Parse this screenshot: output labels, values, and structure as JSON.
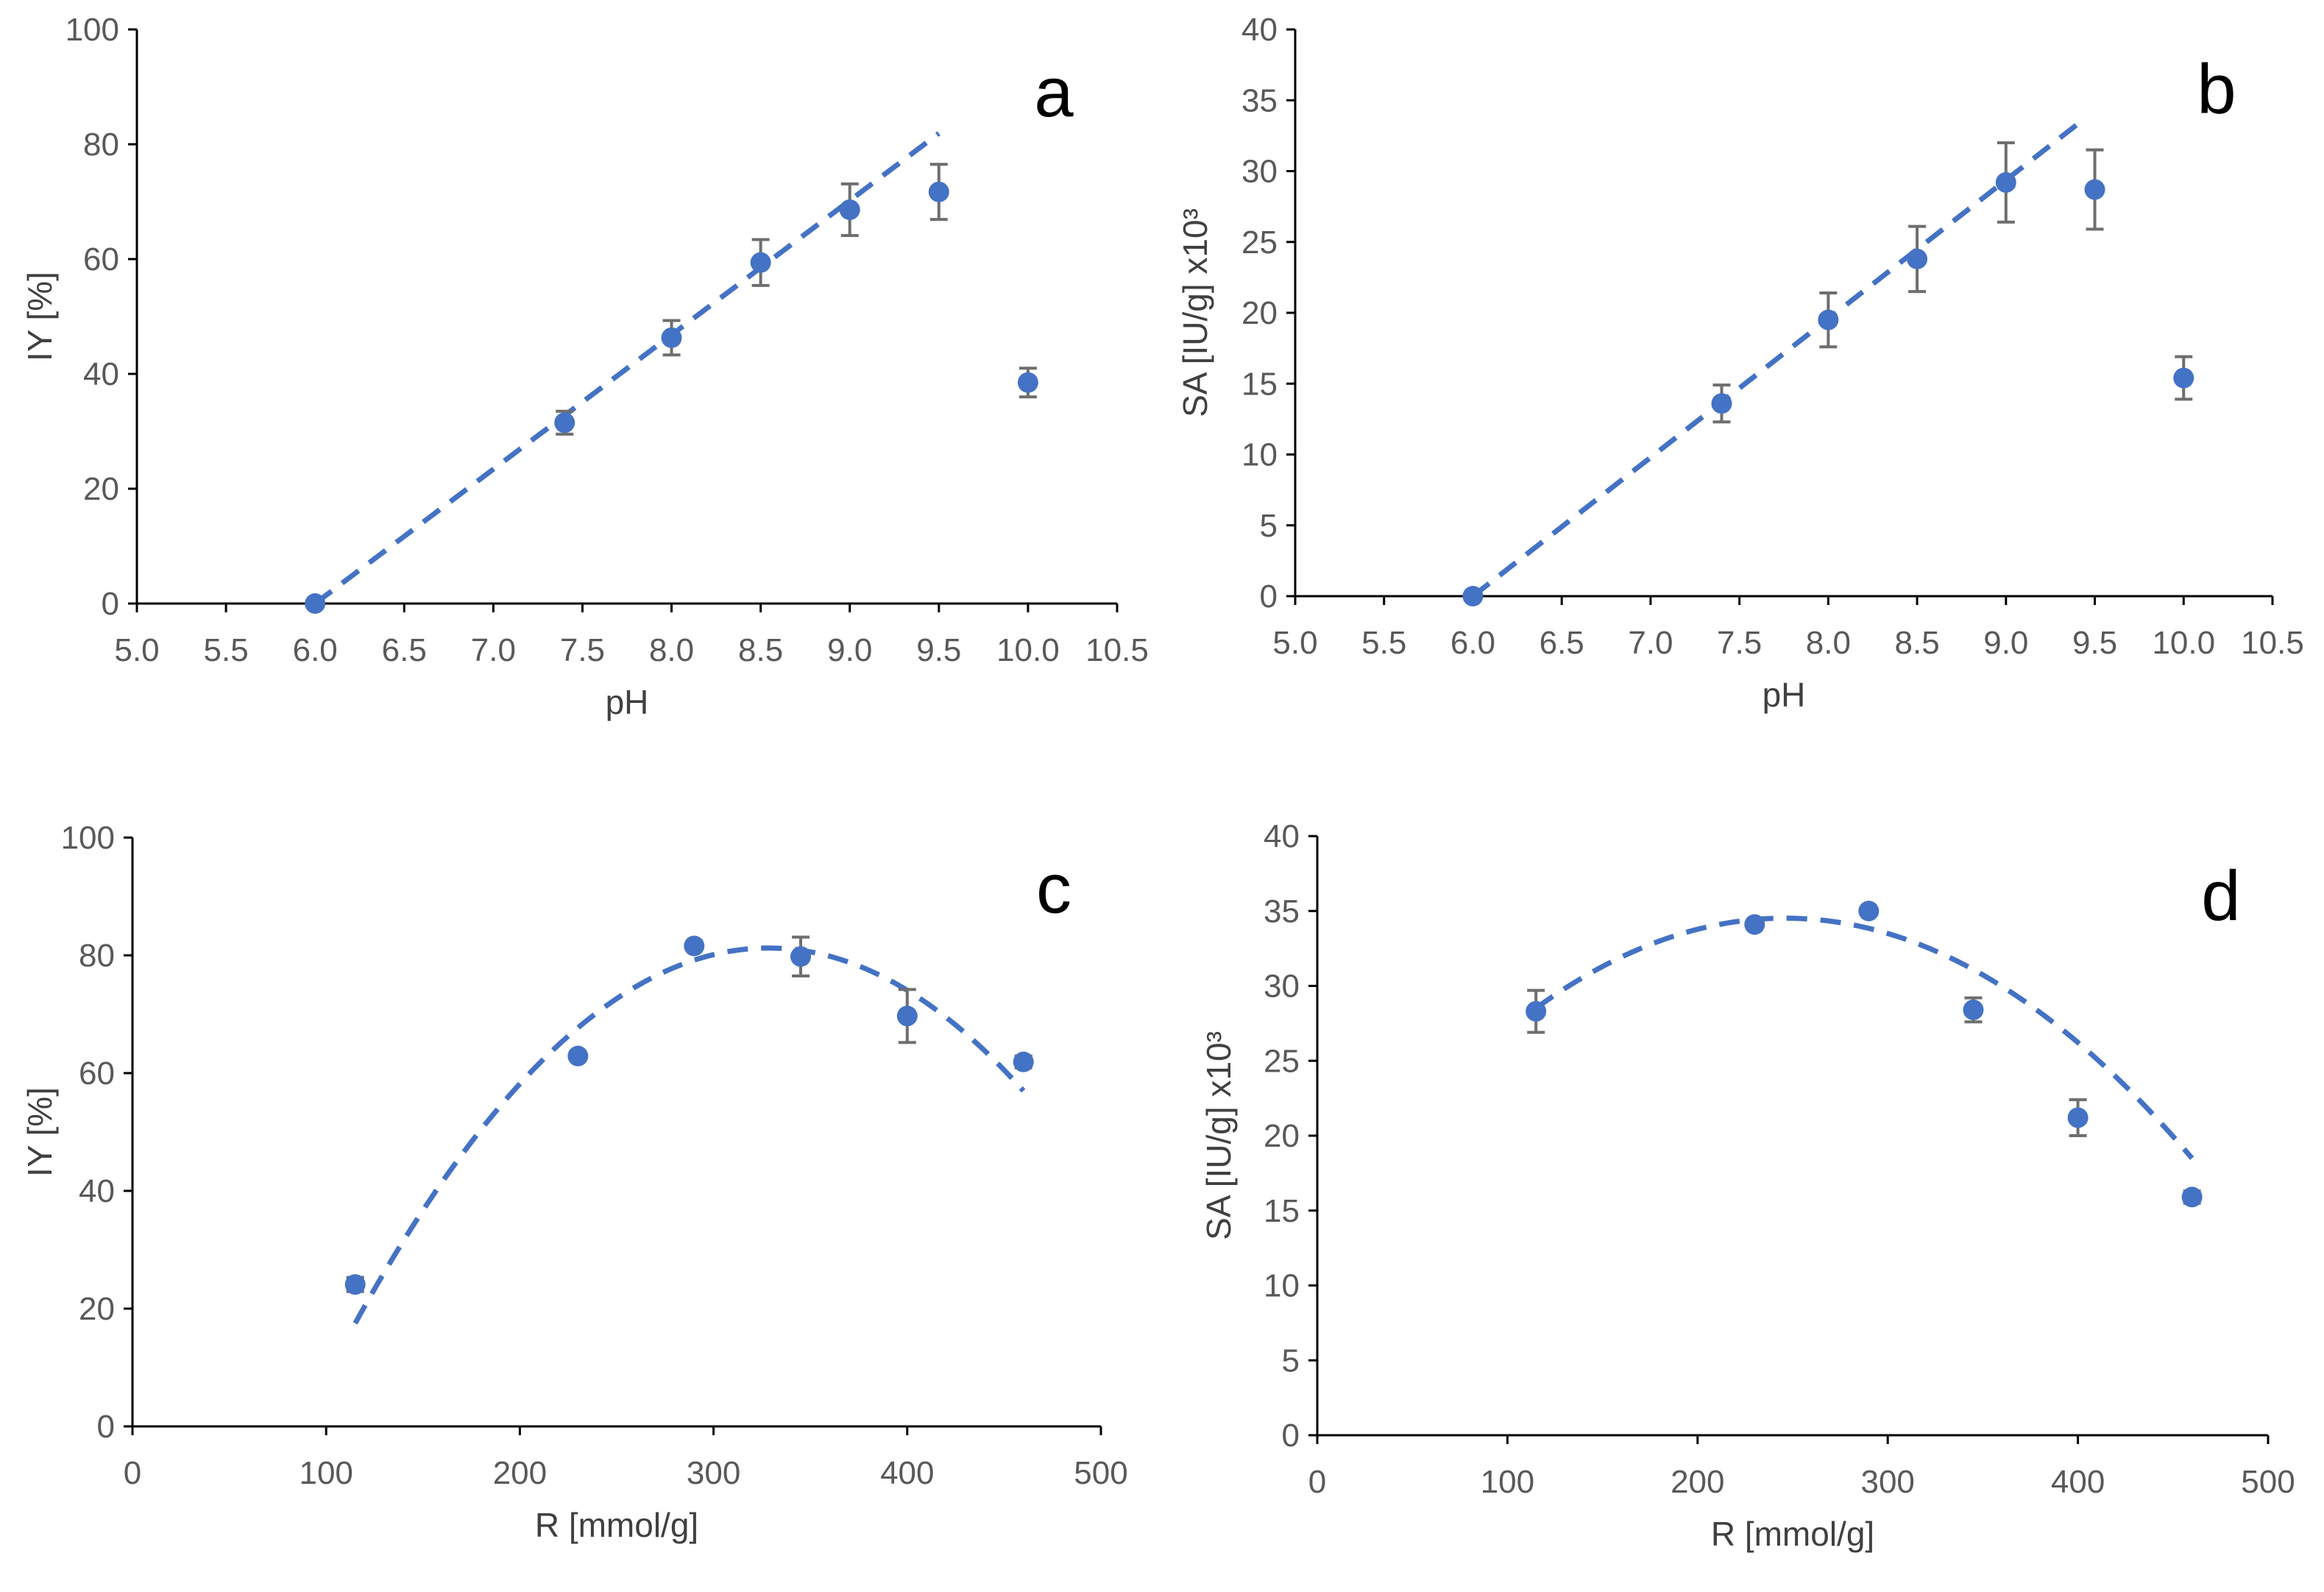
{
  "colors": {
    "marker": "#4472c4",
    "fit": "#4472c4",
    "errorbar": "#6e6e6e",
    "axis": "#000000",
    "ticklabel": "#595959",
    "axislabel": "#404040"
  },
  "chart_data": [
    {
      "id": "a",
      "type": "scatter",
      "panel_label": "a",
      "xlabel": "pH",
      "ylabel": "IY [%]",
      "xlim": [
        5.0,
        10.5
      ],
      "ylim": [
        0,
        100
      ],
      "xticks": [
        5.0,
        5.5,
        6.0,
        6.5,
        7.0,
        7.5,
        8.0,
        8.5,
        9.0,
        9.5,
        10.0,
        10.5
      ],
      "yticks": [
        0,
        20,
        40,
        60,
        80,
        100
      ],
      "xtick_labels": [
        "5.0",
        "5.5",
        "6.0",
        "6.5",
        "7.0",
        "7.5",
        "8.0",
        "8.5",
        "9.0",
        "9.5",
        "10.0",
        "10.5"
      ],
      "ytick_labels": [
        "0",
        "20",
        "40",
        "60",
        "80",
        "100"
      ],
      "grid": false,
      "points": [
        {
          "x": 6.0,
          "y": 0,
          "err": 0
        },
        {
          "x": 7.4,
          "y": 31.5,
          "err": 2.0
        },
        {
          "x": 8.0,
          "y": 46.3,
          "err": 3.0
        },
        {
          "x": 8.5,
          "y": 59.4,
          "err": 4.0
        },
        {
          "x": 9.0,
          "y": 68.6,
          "err": 4.5
        },
        {
          "x": 9.5,
          "y": 71.7,
          "err": 4.8
        },
        {
          "x": 10.0,
          "y": 38.5,
          "err": 2.5
        }
      ],
      "fit": {
        "kind": "linear",
        "x_range": [
          6.0,
          9.5
        ],
        "slope": 23.4,
        "intercept": -140.4
      }
    },
    {
      "id": "b",
      "type": "scatter",
      "panel_label": "b",
      "xlabel": "pH",
      "ylabel": "SA [IU/g] x10³",
      "xlim": [
        5.0,
        10.5
      ],
      "ylim": [
        0,
        40
      ],
      "xticks": [
        5.0,
        5.5,
        6.0,
        6.5,
        7.0,
        7.5,
        8.0,
        8.5,
        9.0,
        9.5,
        10.0,
        10.5
      ],
      "yticks": [
        0,
        5,
        10,
        15,
        20,
        25,
        30,
        35,
        40
      ],
      "xtick_labels": [
        "5.0",
        "5.5",
        "6.0",
        "6.5",
        "7.0",
        "7.5",
        "8.0",
        "8.5",
        "9.0",
        "9.5",
        "10.0",
        "10.5"
      ],
      "ytick_labels": [
        "0",
        "5",
        "10",
        "15",
        "20",
        "25",
        "30",
        "35",
        "40"
      ],
      "grid": false,
      "points": [
        {
          "x": 6.0,
          "y": 0,
          "err": 0
        },
        {
          "x": 7.4,
          "y": 13.6,
          "err": 1.3
        },
        {
          "x": 8.0,
          "y": 19.5,
          "err": 1.9
        },
        {
          "x": 8.5,
          "y": 23.8,
          "err": 2.3
        },
        {
          "x": 9.0,
          "y": 29.2,
          "err": 2.8
        },
        {
          "x": 9.5,
          "y": 28.7,
          "err": 2.8
        },
        {
          "x": 10.0,
          "y": 15.4,
          "err": 1.5
        }
      ],
      "fit": {
        "kind": "linear",
        "x_range": [
          6.0,
          9.4
        ],
        "slope": 9.79,
        "intercept": -58.74
      }
    },
    {
      "id": "c",
      "type": "scatter",
      "panel_label": "c",
      "xlabel": "R [mmol/g]",
      "ylabel": "IY [%]",
      "xlim": [
        0,
        500
      ],
      "ylim": [
        0,
        100
      ],
      "xticks": [
        0,
        100,
        200,
        300,
        400,
        500
      ],
      "yticks": [
        0,
        20,
        40,
        60,
        80,
        100
      ],
      "xtick_labels": [
        "0",
        "100",
        "200",
        "300",
        "400",
        "500"
      ],
      "ytick_labels": [
        "0",
        "20",
        "40",
        "60",
        "80",
        "100"
      ],
      "grid": false,
      "points": [
        {
          "x": 115,
          "y": 24.1,
          "err": 1.2
        },
        {
          "x": 230,
          "y": 62.9,
          "err": 0
        },
        {
          "x": 290,
          "y": 81.6,
          "err": 0
        },
        {
          "x": 345,
          "y": 79.8,
          "err": 3.3
        },
        {
          "x": 400,
          "y": 69.7,
          "err": 4.5
        },
        {
          "x": 460,
          "y": 61.9,
          "err": 1.0
        }
      ],
      "fit": {
        "kind": "quadratic",
        "x_range": [
          115,
          460
        ],
        "a": -0.0014,
        "b": 0.9194,
        "c": -69.7
      }
    },
    {
      "id": "d",
      "type": "scatter",
      "panel_label": "d",
      "xlabel": "R [mmol/g]",
      "ylabel": "SA [IU/g] x10³",
      "xlim": [
        0,
        500
      ],
      "ylim": [
        0,
        40
      ],
      "xticks": [
        0,
        100,
        200,
        300,
        400,
        500
      ],
      "yticks": [
        0,
        5,
        10,
        15,
        20,
        25,
        30,
        35,
        40
      ],
      "xtick_labels": [
        "0",
        "100",
        "200",
        "300",
        "400",
        "500"
      ],
      "ytick_labels": [
        "0",
        "5",
        "10",
        "15",
        "20",
        "25",
        "30",
        "35",
        "40"
      ],
      "grid": false,
      "points": [
        {
          "x": 115,
          "y": 28.3,
          "err": 1.4
        },
        {
          "x": 230,
          "y": 34.1,
          "err": 0
        },
        {
          "x": 290,
          "y": 35.0,
          "err": 0
        },
        {
          "x": 345,
          "y": 28.4,
          "err": 0.8
        },
        {
          "x": 400,
          "y": 21.2,
          "err": 1.2
        },
        {
          "x": 460,
          "y": 15.9,
          "err": 0.4
        }
      ],
      "fit": {
        "kind": "quadratic",
        "x_range": [
          115,
          460
        ],
        "a": -0.00035,
        "b": 0.1722,
        "c": 13.34
      }
    }
  ]
}
